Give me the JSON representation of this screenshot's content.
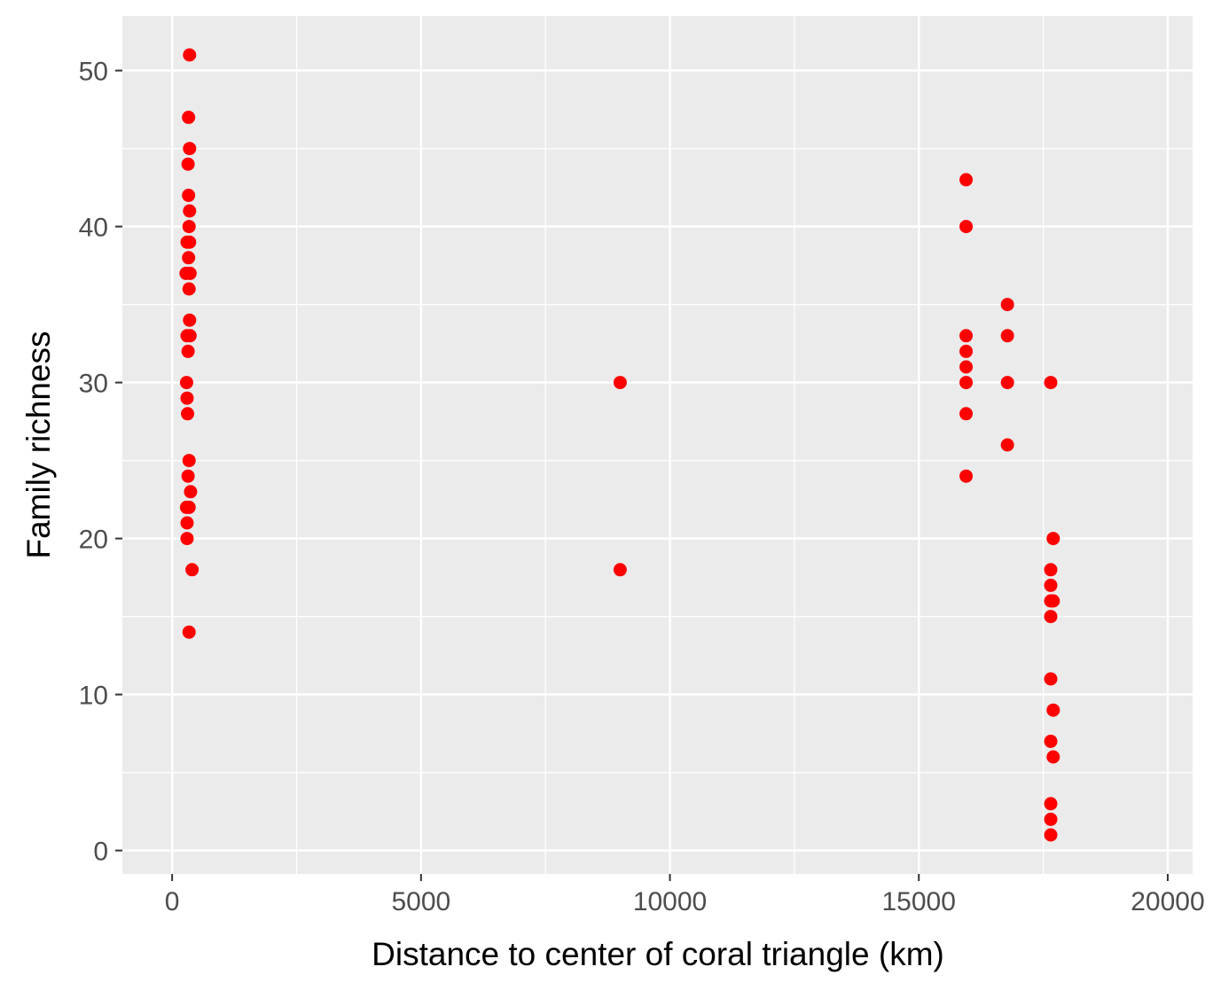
{
  "chart_data": {
    "type": "scatter",
    "title": "",
    "xlabel": "Distance to center of coral triangle (km)",
    "ylabel": "Family richness",
    "xlim": [
      -1000,
      20500
    ],
    "ylim": [
      -1.5,
      53.5
    ],
    "xticks": [
      0,
      5000,
      10000,
      15000,
      20000
    ],
    "xtick_labels": [
      "0",
      "5000",
      "10000",
      "15000",
      "20000"
    ],
    "yticks": [
      0,
      10,
      20,
      30,
      40,
      50
    ],
    "ytick_labels": [
      "0",
      "10",
      "20",
      "30",
      "40",
      "50"
    ],
    "grid": true,
    "panel_color": "#EBEBEB",
    "point_color": "#FF0000",
    "series": [
      {
        "points": [
          [
            350,
            51
          ],
          [
            330,
            47
          ],
          [
            350,
            45
          ],
          [
            320,
            44
          ],
          [
            330,
            42
          ],
          [
            350,
            41
          ],
          [
            340,
            40
          ],
          [
            300,
            39
          ],
          [
            350,
            39
          ],
          [
            330,
            38
          ],
          [
            280,
            37
          ],
          [
            360,
            37
          ],
          [
            340,
            36
          ],
          [
            350,
            34
          ],
          [
            300,
            33
          ],
          [
            360,
            33
          ],
          [
            320,
            32
          ],
          [
            290,
            30
          ],
          [
            300,
            29
          ],
          [
            310,
            28
          ],
          [
            340,
            25
          ],
          [
            320,
            24
          ],
          [
            370,
            23
          ],
          [
            290,
            22
          ],
          [
            340,
            22
          ],
          [
            300,
            21
          ],
          [
            300,
            20
          ],
          [
            400,
            18
          ],
          [
            340,
            14
          ],
          [
            9000,
            30
          ],
          [
            9000,
            18
          ],
          [
            15950,
            43
          ],
          [
            15950,
            40
          ],
          [
            15950,
            33
          ],
          [
            15950,
            32
          ],
          [
            15950,
            31
          ],
          [
            15950,
            30
          ],
          [
            15950,
            28
          ],
          [
            15950,
            24
          ],
          [
            16780,
            35
          ],
          [
            16780,
            33
          ],
          [
            16780,
            30
          ],
          [
            16780,
            26
          ],
          [
            17650,
            30
          ],
          [
            17700,
            20
          ],
          [
            17650,
            18
          ],
          [
            17650,
            17
          ],
          [
            17650,
            16
          ],
          [
            17700,
            16
          ],
          [
            17650,
            15
          ],
          [
            17650,
            11
          ],
          [
            17700,
            9
          ],
          [
            17650,
            7
          ],
          [
            17700,
            6
          ],
          [
            17650,
            3
          ],
          [
            17650,
            2
          ],
          [
            17650,
            1
          ]
        ]
      }
    ]
  }
}
